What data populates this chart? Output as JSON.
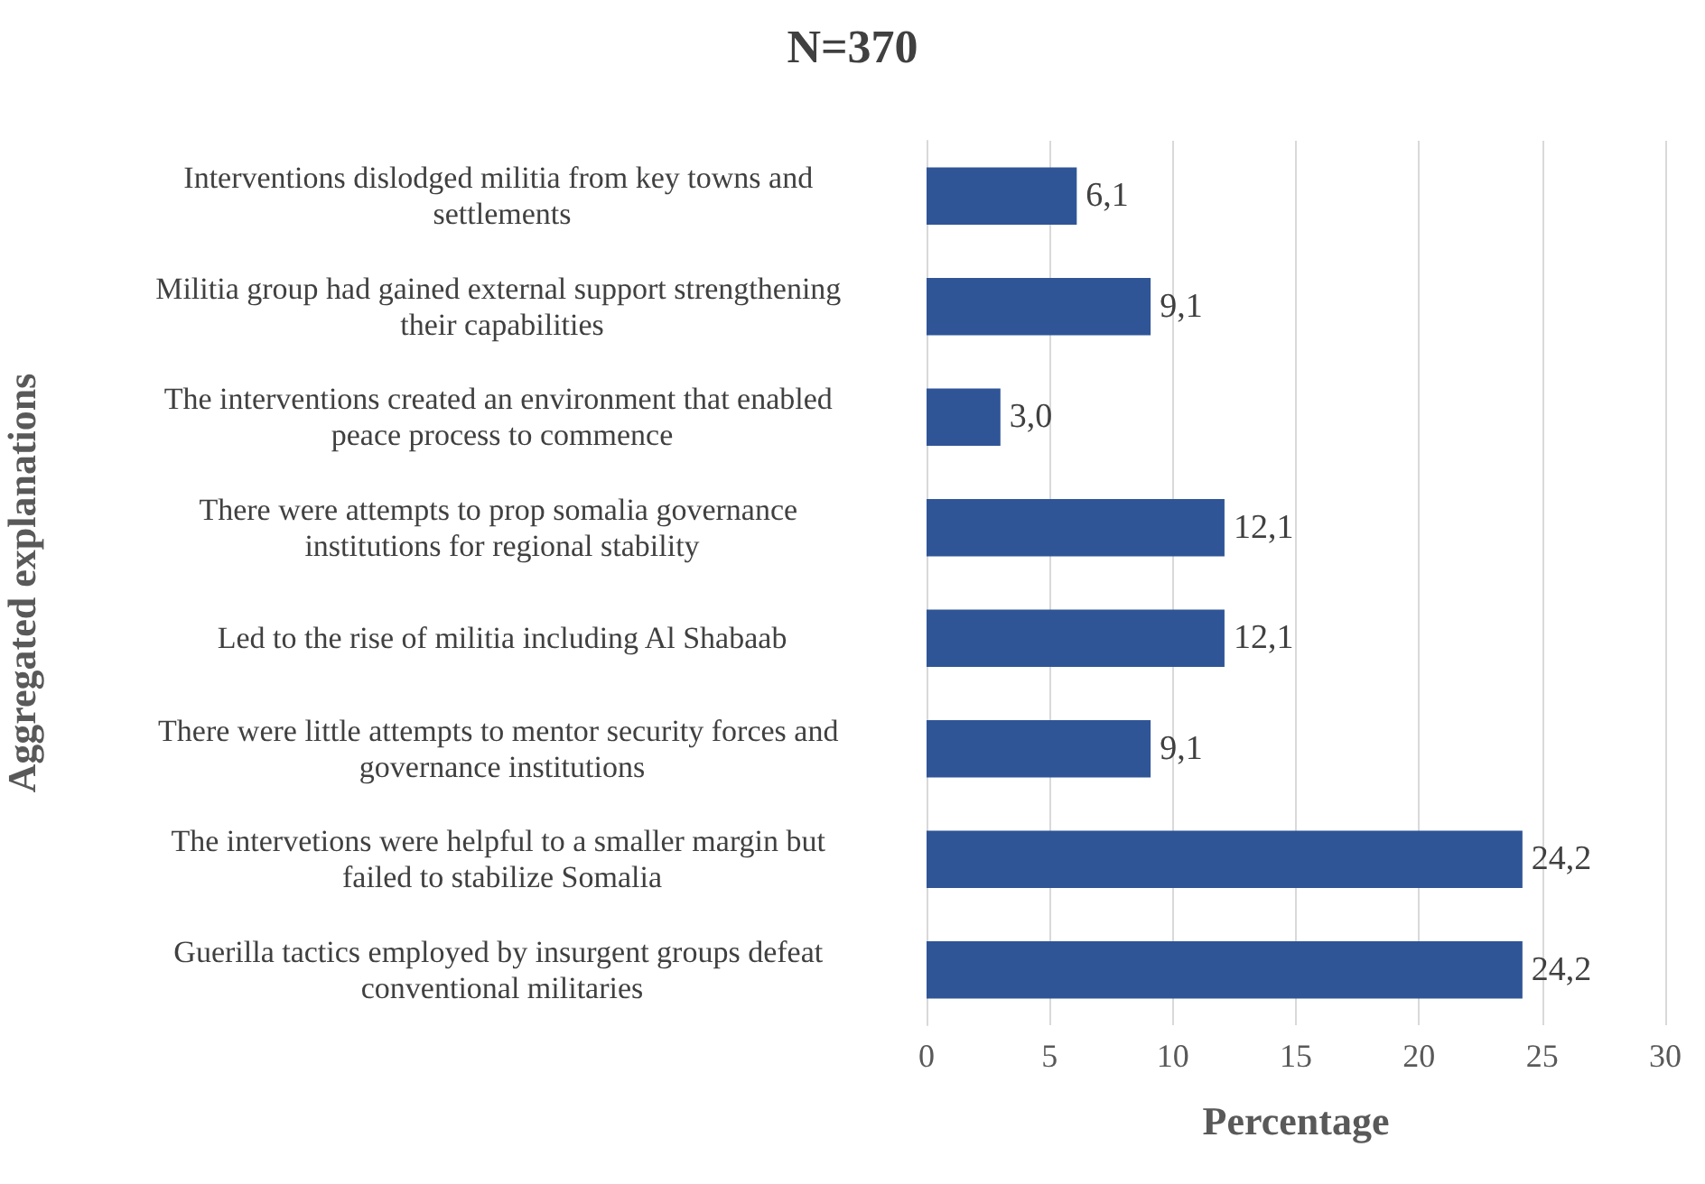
{
  "chart_data": {
    "type": "bar",
    "orientation": "horizontal",
    "title": "N=370",
    "xlabel": "Percentage",
    "ylabel": "Aggregated explanations",
    "categories": [
      "Interventions dislodged militia from key towns and settlements",
      "Militia group had gained external support strengthening their capabilities",
      "The interventions created an environment that enabled peace process to commence",
      "There were attempts to prop somalia governance institutions for regional stability",
      "Led to the rise of militia including Al Shabaab",
      "There were little attempts to mentor security forces and governance institutions",
      "The intervetions were helpful to a smaller margin but failed to stabilize Somalia",
      "Guerilla tactics employed by insurgent groups defeat conventional militaries"
    ],
    "values": [
      6.1,
      9.1,
      3.0,
      12.1,
      12.1,
      9.1,
      24.2,
      24.2
    ],
    "value_labels": [
      "6,1",
      "9,1",
      "3,0",
      "12,1",
      "12,1",
      "9,1",
      "24,2",
      "24,2"
    ],
    "color": "#2f5597",
    "xlim": [
      0,
      30
    ],
    "xticks": [
      0,
      5,
      10,
      15,
      20,
      25,
      30
    ],
    "grid": "x"
  }
}
